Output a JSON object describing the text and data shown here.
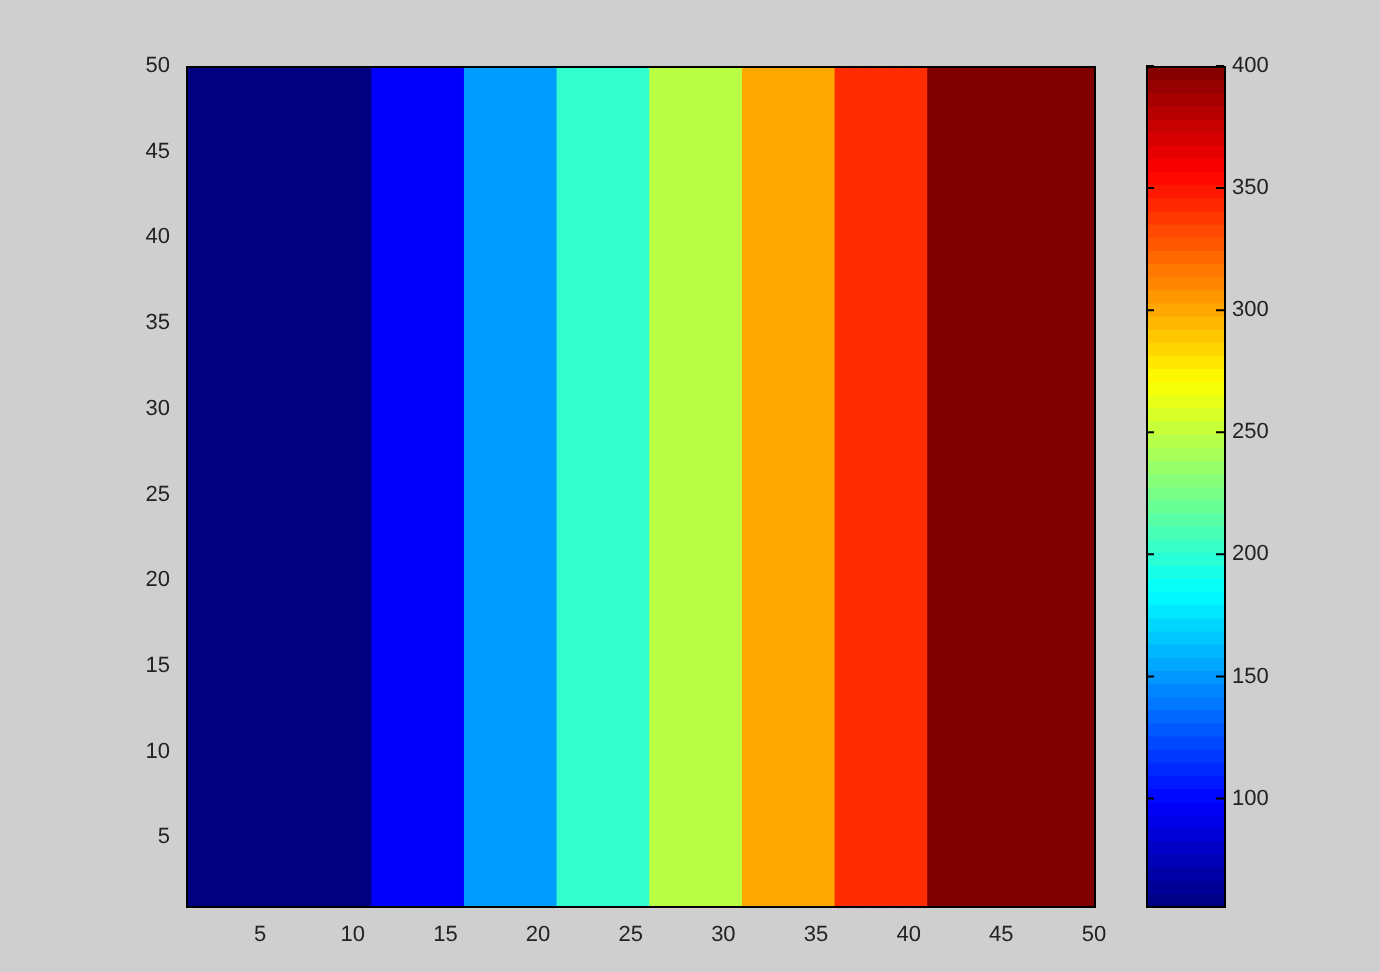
{
  "chart_data": {
    "type": "heatmap",
    "x": [
      1.5,
      2.5,
      3.5,
      4.5,
      5.5,
      6.5,
      7.5,
      8.5,
      9.5,
      10.5,
      11.5,
      12.5,
      13.5,
      14.5,
      15.5,
      16.5,
      17.5,
      18.5,
      19.5,
      20.5,
      21.5,
      22.5,
      23.5,
      24.5,
      25.5,
      26.5,
      27.5,
      28.5,
      29.5,
      30.5,
      31.5,
      32.5,
      33.5,
      34.5,
      35.5,
      36.5,
      37.5,
      38.5,
      39.5,
      40.5,
      41.5,
      42.5,
      43.5,
      44.5,
      45.5,
      46.5,
      47.5,
      48.5,
      49.5
    ],
    "cells": [
      [
        56,
        56,
        56,
        56,
        56,
        56,
        56,
        56,
        56,
        56,
        98,
        98,
        98,
        98,
        98,
        152,
        152,
        152,
        152,
        152,
        202,
        202,
        202,
        202,
        202,
        248,
        248,
        248,
        248,
        248,
        300,
        300,
        300,
        300,
        300,
        342,
        342,
        342,
        342,
        342,
        400,
        400,
        400,
        400,
        400,
        400,
        400,
        400,
        400
      ]
    ],
    "xlim": [
      1,
      50
    ],
    "xticks": [
      5,
      10,
      15,
      20,
      25,
      30,
      35,
      40,
      45,
      50
    ],
    "ylim": [
      1,
      50
    ],
    "yticks": [
      5,
      10,
      15,
      20,
      25,
      30,
      35,
      40,
      45,
      50
    ],
    "clim": [
      56,
      400
    ],
    "cticks": [
      100,
      150,
      200,
      250,
      300,
      350,
      400
    ]
  }
}
